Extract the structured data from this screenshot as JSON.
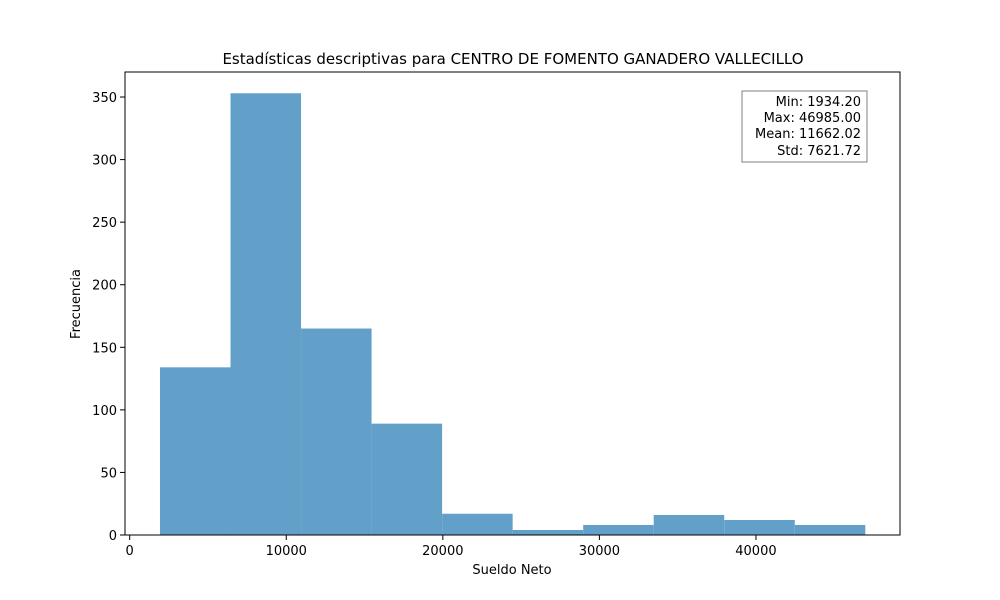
{
  "chart_data": {
    "type": "bar",
    "title": "Estadísticas descriptivas para CENTRO DE FOMENTO GANADERO VALLECILLO",
    "xlabel": "Sueldo Neto",
    "ylabel": "Frecuencia",
    "bin_edges": [
      1934.2,
      6439.28,
      10944.36,
      15449.44,
      19954.52,
      24459.6,
      28964.68,
      33469.76,
      37974.84,
      42479.92,
      46985.0
    ],
    "values": [
      134,
      353,
      165,
      89,
      17,
      4,
      8,
      16,
      12,
      8
    ],
    "xlim": [
      -300,
      49200
    ],
    "ylim": [
      0,
      370
    ],
    "xticks": [
      0,
      10000,
      20000,
      30000,
      40000
    ],
    "xtick_labels": [
      "0",
      "10000",
      "20000",
      "30000",
      "40000"
    ],
    "yticks": [
      0,
      50,
      100,
      150,
      200,
      250,
      300,
      350
    ],
    "ytick_labels": [
      "0",
      "50",
      "100",
      "150",
      "200",
      "250",
      "300",
      "350"
    ],
    "grid": false,
    "bar_color": "#62a0ca",
    "stats_box": {
      "placement": "top-right",
      "lines": [
        "Min: 1934.20",
        "Max: 46985.00",
        "Mean: 11662.02",
        "Std: 7621.72"
      ]
    }
  }
}
